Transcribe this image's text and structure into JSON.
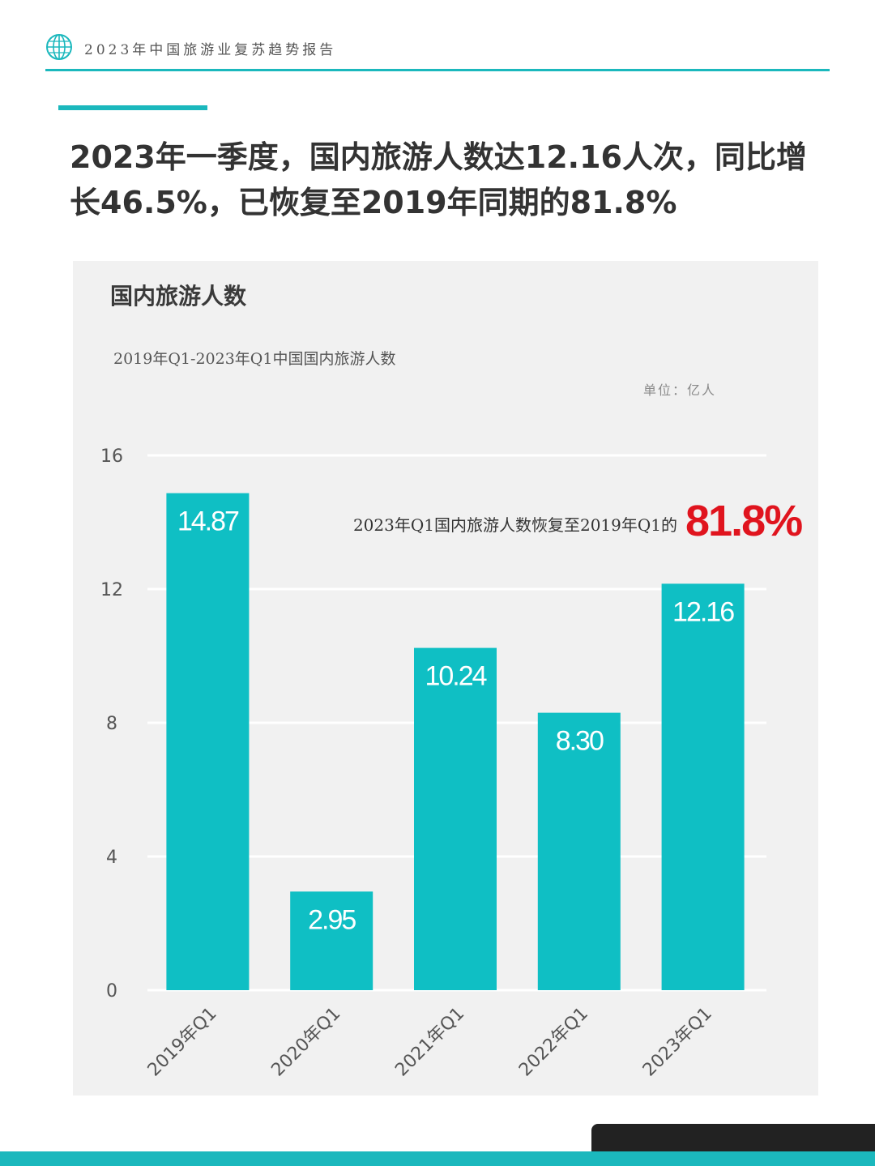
{
  "header": {
    "title": "2023年中国旅游业复苏趋势报告",
    "logo_icon": "globe-icon"
  },
  "headline": "2023年一季度，国内旅游人数达12.16人次，同比增\n长46.5%，已恢复至2019年同期的81.8%",
  "colors": {
    "accent": "#1bb8bd",
    "bar": "#0fbfc4",
    "highlight": "#e0141e",
    "panel": "#f1f1f1"
  },
  "chart_data": {
    "type": "bar",
    "title": "国内旅游人数",
    "subtitle": "2019年Q1-2023年Q1中国国内旅游人数",
    "unit_label": "单位：亿人",
    "categories": [
      "2019年Q1",
      "2020年Q1",
      "2021年Q1",
      "2022年Q1",
      "2023年Q1"
    ],
    "values": [
      14.87,
      2.95,
      10.24,
      8.3,
      12.16
    ],
    "value_labels": [
      "14.87",
      "2.95",
      "10.24",
      "8.30",
      "12.16"
    ],
    "ylim": [
      0,
      16
    ],
    "yticks": [
      0,
      4,
      8,
      12,
      16
    ],
    "grid": true,
    "annotation": {
      "text": "2023年Q1国内旅游人数恢复至2019年Q1的",
      "value": "81.8%"
    }
  }
}
